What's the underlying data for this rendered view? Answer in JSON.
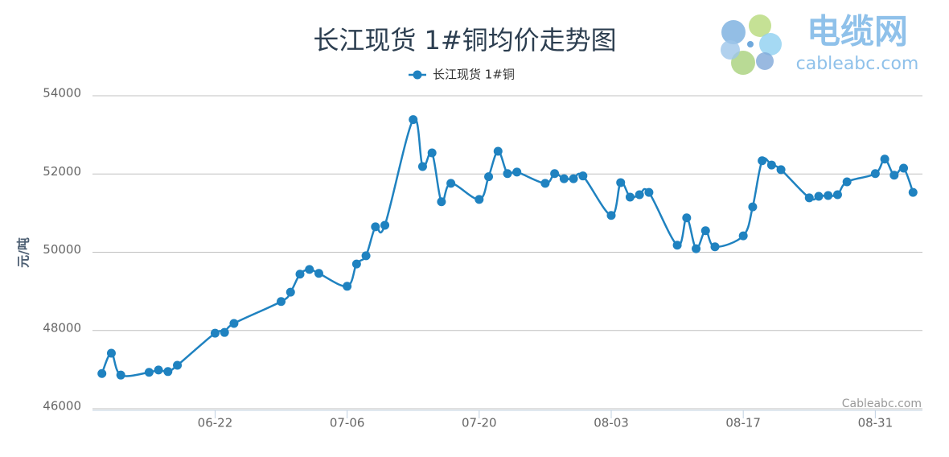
{
  "chart_data": {
    "type": "line",
    "title": "长江现货 1#铜均价走势图",
    "y_label": "元/吨",
    "credits": "Cableabc.com",
    "watermark": {
      "name": "电缆网",
      "url": "cableabc.com"
    },
    "legend": "top",
    "grid": true,
    "x": [
      "06-10",
      "06-11",
      "06-12",
      "06-15",
      "06-16",
      "06-17",
      "06-18",
      "06-22",
      "06-23",
      "06-24",
      "06-29",
      "06-30",
      "07-01",
      "07-02",
      "07-03",
      "07-06",
      "07-07",
      "07-08",
      "07-09",
      "07-10",
      "07-13",
      "07-14",
      "07-15",
      "07-16",
      "07-17",
      "07-20",
      "07-21",
      "07-22",
      "07-23",
      "07-24",
      "07-27",
      "07-28",
      "07-29",
      "07-30",
      "07-31",
      "08-03",
      "08-04",
      "08-05",
      "08-06",
      "08-07",
      "08-10",
      "08-11",
      "08-12",
      "08-13",
      "08-14",
      "08-17",
      "08-18",
      "08-19",
      "08-20",
      "08-21",
      "08-24",
      "08-25",
      "08-26",
      "08-27",
      "08-28",
      "08-31",
      "09-01",
      "09-02",
      "09-03",
      "09-04"
    ],
    "series": [
      {
        "name": "长江现货 1#铜",
        "color": "#1f82c0",
        "values": [
          46900,
          47420,
          46860,
          46930,
          46990,
          46950,
          47110,
          47930,
          47950,
          48180,
          48740,
          48980,
          49440,
          49560,
          49460,
          49130,
          49700,
          49910,
          50650,
          50690,
          53390,
          52190,
          52540,
          51290,
          51760,
          51350,
          51930,
          52580,
          52010,
          52050,
          51760,
          52010,
          51880,
          51880,
          51950,
          50940,
          51780,
          51410,
          51470,
          51530,
          50180,
          50880,
          50090,
          50550,
          50140,
          50420,
          51160,
          52340,
          52230,
          52110,
          51390,
          51430,
          51450,
          51470,
          51800,
          52010,
          52380,
          51970,
          52150,
          51530
        ]
      }
    ],
    "xlim": [
      "06-09",
      "09-05"
    ],
    "xticks": [
      "06-22",
      "07-06",
      "07-20",
      "08-03",
      "08-17",
      "08-31"
    ],
    "ylim": [
      46000,
      54000
    ],
    "yticks": [
      46000,
      48000,
      50000,
      52000,
      54000
    ]
  }
}
